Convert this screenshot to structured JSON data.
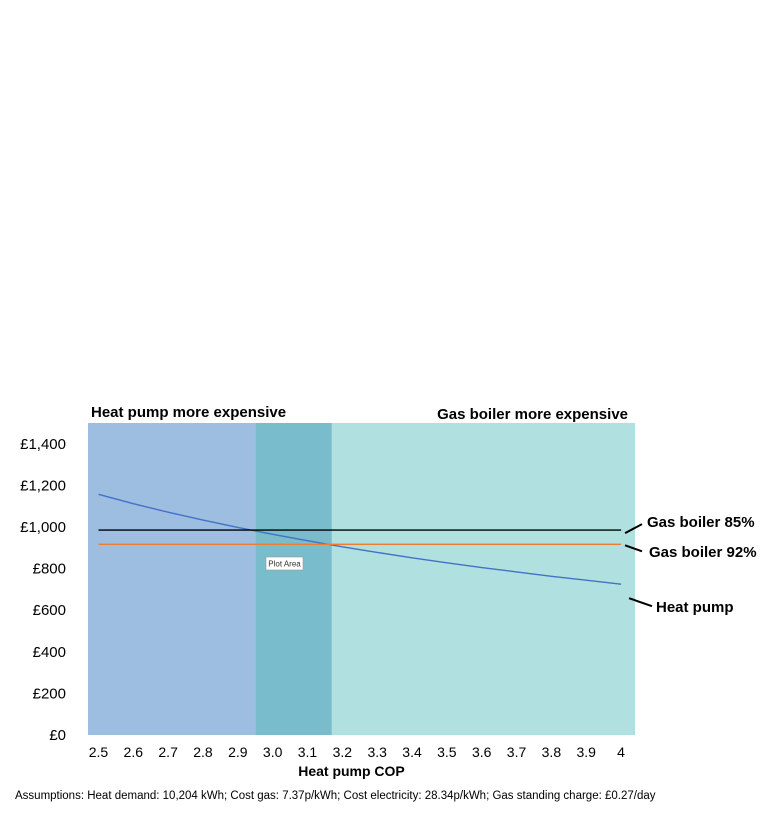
{
  "chart_data": {
    "type": "line",
    "title": "",
    "xlabel": "Heat pump COP",
    "ylabel": "",
    "x": [
      2.5,
      2.6,
      2.7,
      2.8,
      2.9,
      3.0,
      3.1,
      3.2,
      3.3,
      3.4,
      3.5,
      3.6,
      3.7,
      3.8,
      3.9,
      4.0
    ],
    "x_tick_labels": [
      "2.5",
      "2.6",
      "2.7",
      "2.8",
      "2.9",
      "3.0",
      "3.1",
      "3.2",
      "3.3",
      "3.4",
      "3.5",
      "3.6",
      "3.7",
      "3.8",
      "3.9",
      "4"
    ],
    "xlim": [
      2.47,
      4.04
    ],
    "ylim": [
      0,
      1500
    ],
    "y_ticks": [
      0,
      200,
      400,
      600,
      800,
      1000,
      1200,
      1400
    ],
    "y_tick_labels": [
      "£0",
      "£200",
      "£400",
      "£600",
      "£800",
      "£1,000",
      "£1,200",
      "£1,400"
    ],
    "grid": false,
    "legend": "none",
    "series": [
      {
        "name": "Heat pump",
        "color": "#4472c4",
        "values": [
          1157,
          1112,
          1071,
          1033,
          998,
          965,
          934,
          905,
          878,
          852,
          828,
          805,
          784,
          763,
          744,
          725
        ]
      },
      {
        "name": "Gas boiler 85%",
        "color": "#000000",
        "values": [
          985,
          985,
          985,
          985,
          985,
          985,
          985,
          985,
          985,
          985,
          985,
          985,
          985,
          985,
          985,
          985
        ]
      },
      {
        "name": "Gas boiler 92%",
        "color": "#ed7d31",
        "values": [
          917,
          917,
          917,
          917,
          917,
          917,
          917,
          917,
          917,
          917,
          917,
          917,
          917,
          917,
          917,
          917
        ]
      }
    ],
    "regions": [
      {
        "label": "Heat pump more expensive",
        "x_range": [
          2.47,
          2.95
        ],
        "color": "#9dbde1"
      },
      {
        "label": "",
        "x_range": [
          2.95,
          3.17
        ],
        "color": "#79bccc"
      },
      {
        "label": "Gas boiler more expensive",
        "x_range": [
          3.17,
          4.04
        ],
        "color": "#b0e0e0"
      }
    ],
    "annotations": [
      {
        "text": "Plot Area"
      }
    ]
  },
  "footer": {
    "assumptions": "Assumptions: Heat demand: 10,204 kWh; Cost gas: 7.37p/kWh; Cost electricity: 28.34p/kWh; Gas standing charge: £0.27/day"
  }
}
